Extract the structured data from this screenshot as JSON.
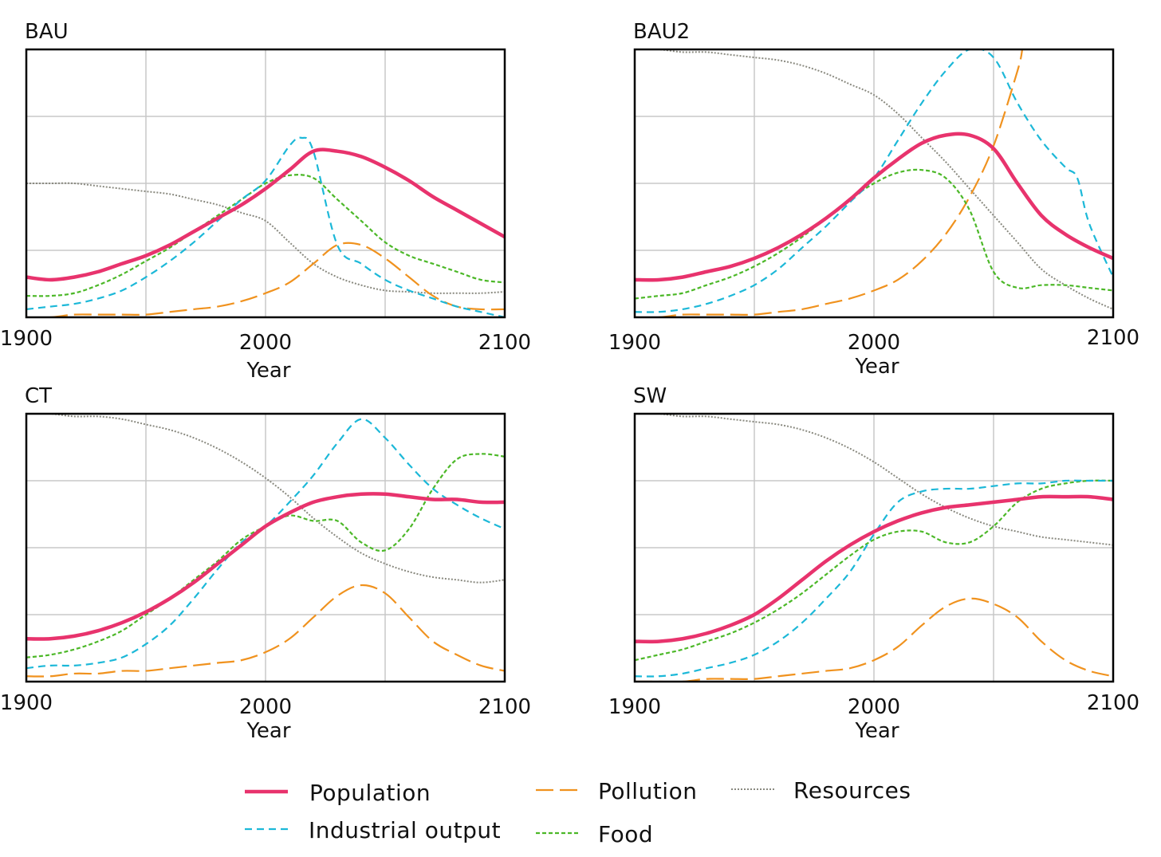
{
  "chart_data": [
    {
      "type": "line",
      "title": "BAU",
      "xlabel": "Year",
      "ylabel": "",
      "xlim": [
        1900,
        2100
      ],
      "ylim": [
        0,
        1
      ],
      "grid": true,
      "x_ticks": [
        "1900",
        "2000",
        "2100"
      ],
      "series": [
        {
          "name": "Resources",
          "x": [
            1900,
            1910,
            1920,
            1930,
            1940,
            1950,
            1960,
            1970,
            1980,
            1990,
            2000,
            2010,
            2020,
            2030,
            2040,
            2050,
            2060,
            2070,
            2080,
            2090,
            2100
          ],
          "values": [
            0.5,
            0.5,
            0.5,
            0.49,
            0.48,
            0.47,
            0.46,
            0.44,
            0.42,
            0.39,
            0.36,
            0.28,
            0.2,
            0.15,
            0.12,
            0.1,
            0.095,
            0.09,
            0.09,
            0.09,
            0.095
          ]
        },
        {
          "name": "Population",
          "x": [
            1900,
            1910,
            1920,
            1930,
            1940,
            1950,
            1960,
            1970,
            1980,
            1990,
            2000,
            2010,
            2020,
            2030,
            2040,
            2050,
            2060,
            2070,
            2080,
            2090,
            2100
          ],
          "values": [
            0.15,
            0.14,
            0.15,
            0.17,
            0.2,
            0.23,
            0.27,
            0.32,
            0.37,
            0.42,
            0.48,
            0.55,
            0.62,
            0.62,
            0.6,
            0.56,
            0.51,
            0.45,
            0.4,
            0.35,
            0.3
          ]
        },
        {
          "name": "Industrial output",
          "x": [
            1900,
            1910,
            1920,
            1930,
            1940,
            1950,
            1960,
            1970,
            1980,
            1990,
            2000,
            2010,
            2015,
            2020,
            2030,
            2040,
            2050,
            2060,
            2070,
            2080,
            2090,
            2100
          ],
          "values": [
            0.03,
            0.04,
            0.05,
            0.07,
            0.1,
            0.15,
            0.21,
            0.28,
            0.36,
            0.44,
            0.51,
            0.64,
            0.67,
            0.62,
            0.27,
            0.2,
            0.14,
            0.1,
            0.07,
            0.04,
            0.02,
            0.0
          ]
        },
        {
          "name": "Food",
          "x": [
            1900,
            1910,
            1920,
            1930,
            1940,
            1950,
            1960,
            1970,
            1980,
            1990,
            2000,
            2010,
            2020,
            2030,
            2040,
            2050,
            2060,
            2070,
            2080,
            2090,
            2100
          ],
          "values": [
            0.08,
            0.08,
            0.09,
            0.12,
            0.16,
            0.21,
            0.26,
            0.32,
            0.38,
            0.44,
            0.5,
            0.53,
            0.52,
            0.44,
            0.36,
            0.28,
            0.23,
            0.2,
            0.17,
            0.14,
            0.13
          ]
        },
        {
          "name": "Pollution",
          "x": [
            1900,
            1910,
            1920,
            1930,
            1940,
            1950,
            1960,
            1970,
            1980,
            1990,
            2000,
            2010,
            2020,
            2030,
            2040,
            2050,
            2060,
            2070,
            2080,
            2090,
            2100
          ],
          "values": [
            0.0,
            0.0,
            0.01,
            0.01,
            0.01,
            0.01,
            0.02,
            0.03,
            0.04,
            0.06,
            0.09,
            0.13,
            0.2,
            0.27,
            0.27,
            0.22,
            0.15,
            0.08,
            0.04,
            0.03,
            0.03
          ]
        }
      ]
    },
    {
      "type": "line",
      "title": "BAU2",
      "xlabel": "Year",
      "ylabel": "",
      "xlim": [
        1900,
        2100
      ],
      "ylim": [
        0,
        1
      ],
      "grid": true,
      "x_ticks": [
        "1900",
        "2000",
        "2100"
      ],
      "series": [
        {
          "name": "Resources",
          "x": [
            1900,
            1910,
            1920,
            1930,
            1940,
            1950,
            1960,
            1970,
            1980,
            1990,
            2000,
            2010,
            2020,
            2030,
            2040,
            2050,
            2060,
            2070,
            2080,
            2090,
            2100
          ],
          "values": [
            1.0,
            1.0,
            0.99,
            0.99,
            0.98,
            0.97,
            0.96,
            0.94,
            0.91,
            0.87,
            0.83,
            0.76,
            0.67,
            0.58,
            0.48,
            0.38,
            0.28,
            0.18,
            0.12,
            0.07,
            0.03
          ]
        },
        {
          "name": "Population",
          "x": [
            1900,
            1910,
            1920,
            1930,
            1940,
            1950,
            1960,
            1970,
            1980,
            1990,
            2000,
            2010,
            2020,
            2030,
            2040,
            2050,
            2060,
            2070,
            2080,
            2090,
            2100
          ],
          "values": [
            0.14,
            0.14,
            0.15,
            0.17,
            0.19,
            0.22,
            0.26,
            0.31,
            0.37,
            0.44,
            0.52,
            0.59,
            0.65,
            0.68,
            0.68,
            0.63,
            0.5,
            0.38,
            0.31,
            0.26,
            0.22
          ]
        },
        {
          "name": "Industrial output",
          "x": [
            1900,
            1910,
            1920,
            1930,
            1940,
            1950,
            1960,
            1970,
            1980,
            1990,
            2000,
            2010,
            2020,
            2030,
            2040,
            2050,
            2060,
            2070,
            2080,
            2085,
            2090,
            2100
          ],
          "values": [
            0.02,
            0.02,
            0.03,
            0.05,
            0.08,
            0.12,
            0.18,
            0.26,
            0.34,
            0.43,
            0.52,
            0.66,
            0.8,
            0.92,
            1.0,
            0.97,
            0.8,
            0.66,
            0.56,
            0.52,
            0.35,
            0.15
          ]
        },
        {
          "name": "Food",
          "x": [
            1900,
            1910,
            1920,
            1930,
            1940,
            1950,
            1960,
            1970,
            1980,
            1990,
            2000,
            2010,
            2020,
            2030,
            2040,
            2050,
            2060,
            2070,
            2080,
            2090,
            2100
          ],
          "values": [
            0.07,
            0.08,
            0.09,
            0.12,
            0.15,
            0.19,
            0.24,
            0.3,
            0.37,
            0.44,
            0.5,
            0.54,
            0.55,
            0.52,
            0.4,
            0.17,
            0.11,
            0.12,
            0.12,
            0.11,
            0.1
          ]
        },
        {
          "name": "Pollution",
          "x": [
            1900,
            1910,
            1920,
            1930,
            1940,
            1950,
            1960,
            1970,
            1980,
            1990,
            2000,
            2010,
            2020,
            2030,
            2040,
            2050,
            2060,
            2062
          ],
          "values": [
            0.0,
            0.0,
            0.01,
            0.01,
            0.01,
            0.01,
            0.02,
            0.03,
            0.05,
            0.07,
            0.1,
            0.14,
            0.21,
            0.31,
            0.45,
            0.64,
            0.92,
            1.0
          ]
        }
      ]
    },
    {
      "type": "line",
      "title": "CT",
      "xlabel": "Year",
      "ylabel": "",
      "xlim": [
        1900,
        2100
      ],
      "ylim": [
        0,
        1
      ],
      "grid": true,
      "x_ticks": [
        "1900",
        "2000",
        "2100"
      ],
      "series": [
        {
          "name": "Resources",
          "x": [
            1900,
            1910,
            1920,
            1930,
            1940,
            1950,
            1960,
            1970,
            1980,
            1990,
            2000,
            2010,
            2020,
            2030,
            2040,
            2050,
            2060,
            2070,
            2080,
            2090,
            2100
          ],
          "values": [
            1.0,
            1.0,
            0.99,
            0.99,
            0.98,
            0.96,
            0.94,
            0.91,
            0.87,
            0.82,
            0.76,
            0.69,
            0.61,
            0.54,
            0.48,
            0.44,
            0.41,
            0.39,
            0.38,
            0.37,
            0.38
          ]
        },
        {
          "name": "Population",
          "x": [
            1900,
            1910,
            1920,
            1930,
            1940,
            1950,
            1960,
            1970,
            1980,
            1990,
            2000,
            2010,
            2020,
            2030,
            2040,
            2050,
            2060,
            2070,
            2080,
            2090,
            2100
          ],
          "values": [
            0.16,
            0.16,
            0.17,
            0.19,
            0.22,
            0.26,
            0.31,
            0.37,
            0.44,
            0.51,
            0.58,
            0.63,
            0.67,
            0.69,
            0.7,
            0.7,
            0.69,
            0.68,
            0.68,
            0.67,
            0.67
          ]
        },
        {
          "name": "Industrial output",
          "x": [
            1900,
            1910,
            1920,
            1930,
            1940,
            1950,
            1960,
            1970,
            1980,
            1990,
            2000,
            2010,
            2020,
            2030,
            2040,
            2050,
            2060,
            2070,
            2080,
            2090,
            2100
          ],
          "values": [
            0.05,
            0.06,
            0.06,
            0.07,
            0.09,
            0.14,
            0.21,
            0.31,
            0.42,
            0.52,
            0.58,
            0.67,
            0.77,
            0.89,
            0.98,
            0.91,
            0.81,
            0.72,
            0.66,
            0.61,
            0.57
          ]
        },
        {
          "name": "Food",
          "x": [
            1900,
            1910,
            1920,
            1930,
            1940,
            1950,
            1960,
            1970,
            1980,
            1990,
            2000,
            2010,
            2020,
            2030,
            2040,
            2050,
            2060,
            2070,
            2080,
            2090,
            2100
          ],
          "values": [
            0.09,
            0.1,
            0.12,
            0.15,
            0.19,
            0.25,
            0.31,
            0.38,
            0.45,
            0.53,
            0.58,
            0.62,
            0.6,
            0.6,
            0.52,
            0.49,
            0.57,
            0.72,
            0.83,
            0.85,
            0.84
          ]
        },
        {
          "name": "Pollution",
          "x": [
            1900,
            1910,
            1920,
            1930,
            1940,
            1950,
            1960,
            1970,
            1980,
            1990,
            2000,
            2010,
            2020,
            2030,
            2040,
            2050,
            2060,
            2070,
            2080,
            2090,
            2100
          ],
          "values": [
            0.02,
            0.02,
            0.03,
            0.03,
            0.04,
            0.04,
            0.05,
            0.06,
            0.07,
            0.08,
            0.11,
            0.16,
            0.24,
            0.32,
            0.36,
            0.33,
            0.24,
            0.15,
            0.1,
            0.06,
            0.04
          ]
        }
      ]
    },
    {
      "type": "line",
      "title": "SW",
      "xlabel": "Year",
      "ylabel": "",
      "xlim": [
        1900,
        2100
      ],
      "ylim": [
        0,
        1
      ],
      "grid": true,
      "x_ticks": [
        "1900",
        "2000",
        "2100"
      ],
      "series": [
        {
          "name": "Resources",
          "x": [
            1900,
            1910,
            1920,
            1930,
            1940,
            1950,
            1960,
            1970,
            1980,
            1990,
            2000,
            2010,
            2020,
            2030,
            2040,
            2050,
            2060,
            2070,
            2080,
            2090,
            2100
          ],
          "values": [
            1.0,
            1.0,
            0.99,
            0.99,
            0.98,
            0.97,
            0.96,
            0.94,
            0.91,
            0.87,
            0.82,
            0.76,
            0.7,
            0.65,
            0.61,
            0.58,
            0.56,
            0.54,
            0.53,
            0.52,
            0.51
          ]
        },
        {
          "name": "Population",
          "x": [
            1900,
            1910,
            1920,
            1930,
            1940,
            1950,
            1960,
            1970,
            1980,
            1990,
            2000,
            2010,
            2020,
            2030,
            2040,
            2050,
            2060,
            2070,
            2080,
            2090,
            2100
          ],
          "values": [
            0.15,
            0.15,
            0.16,
            0.18,
            0.21,
            0.25,
            0.31,
            0.38,
            0.45,
            0.51,
            0.56,
            0.6,
            0.63,
            0.65,
            0.66,
            0.67,
            0.68,
            0.69,
            0.69,
            0.69,
            0.68
          ]
        },
        {
          "name": "Industrial output",
          "x": [
            1900,
            1910,
            1920,
            1930,
            1940,
            1950,
            1960,
            1970,
            1980,
            1990,
            2000,
            2010,
            2020,
            2030,
            2040,
            2050,
            2060,
            2070,
            2080,
            2090,
            2100
          ],
          "values": [
            0.02,
            0.02,
            0.03,
            0.05,
            0.07,
            0.1,
            0.15,
            0.22,
            0.31,
            0.41,
            0.55,
            0.67,
            0.71,
            0.72,
            0.72,
            0.73,
            0.74,
            0.74,
            0.75,
            0.75,
            0.75
          ]
        },
        {
          "name": "Food",
          "x": [
            1900,
            1910,
            1920,
            1930,
            1940,
            1950,
            1960,
            1970,
            1980,
            1990,
            2000,
            2010,
            2020,
            2030,
            2040,
            2050,
            2060,
            2070,
            2080,
            2090,
            2100
          ],
          "values": [
            0.08,
            0.1,
            0.12,
            0.15,
            0.18,
            0.22,
            0.27,
            0.33,
            0.4,
            0.47,
            0.53,
            0.56,
            0.56,
            0.52,
            0.52,
            0.58,
            0.67,
            0.72,
            0.74,
            0.75,
            0.75
          ]
        },
        {
          "name": "Pollution",
          "x": [
            1900,
            1910,
            1920,
            1930,
            1940,
            1950,
            1960,
            1970,
            1980,
            1990,
            2000,
            2010,
            2020,
            2030,
            2040,
            2050,
            2060,
            2070,
            2080,
            2090,
            2100
          ],
          "values": [
            0.0,
            0.0,
            0.0,
            0.01,
            0.01,
            0.01,
            0.02,
            0.03,
            0.04,
            0.05,
            0.08,
            0.13,
            0.21,
            0.28,
            0.31,
            0.29,
            0.24,
            0.15,
            0.08,
            0.04,
            0.02
          ]
        }
      ]
    }
  ],
  "legend": {
    "items": [
      {
        "label": "Population",
        "style": "solid-thick",
        "color": "#e8336d"
      },
      {
        "label": "Industrial output",
        "style": "dashed",
        "color": "#1cb8d8"
      },
      {
        "label": "Pollution",
        "style": "long-dashed",
        "color": "#f0921e"
      },
      {
        "label": "Food",
        "style": "short-dashed",
        "color": "#4cb828"
      },
      {
        "label": "Resources",
        "style": "dotted",
        "color": "#8a8a80"
      }
    ]
  }
}
